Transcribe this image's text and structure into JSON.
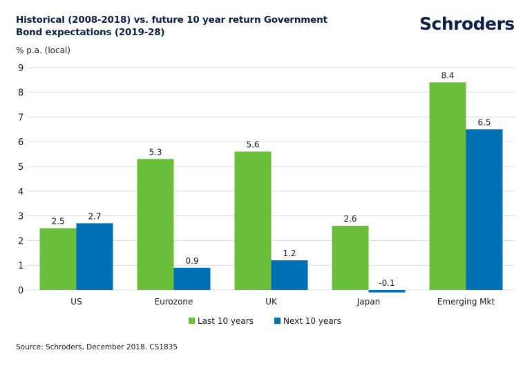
{
  "header": {
    "title_line1": "Historical (2008-2018) vs. future 10 year return Government",
    "title_line2": "Bond expectations (2019-28)",
    "logo_text": "Schroders"
  },
  "footer": {
    "source": "Source: Schroders, December 2018. CS1835"
  },
  "colors": {
    "last": "#6bbe3a",
    "next": "#0070b4",
    "grid": "#dcdcdc",
    "text": "#1a1a1a",
    "title": "#0b1f45"
  },
  "chart_data": {
    "type": "bar",
    "title": "Historical (2008-2018) vs. future 10 year return Government Bond expectations (2019-28)",
    "xlabel": "",
    "ylabel": "% p.a. (local)",
    "ylim": [
      -0.1,
      9
    ],
    "yticks": [
      "0",
      "1",
      "2",
      "3",
      "4",
      "5",
      "6",
      "7",
      "8",
      "9"
    ],
    "grid": true,
    "legend_position": "bottom-center",
    "categories": [
      "US",
      "Eurozone",
      "UK",
      "Japan",
      "Emerging Mkt"
    ],
    "series": [
      {
        "name": "Last 10 years",
        "values": [
          2.5,
          5.3,
          5.6,
          2.6,
          8.4
        ],
        "labels": [
          "2.5",
          "5.3",
          "5.6",
          "2.6",
          "8.4"
        ]
      },
      {
        "name": "Next 10 years",
        "values": [
          2.7,
          0.9,
          1.2,
          -0.1,
          6.5
        ],
        "labels": [
          "2.7",
          "0.9",
          "1.2",
          "-0.1",
          "6.5"
        ]
      }
    ]
  }
}
